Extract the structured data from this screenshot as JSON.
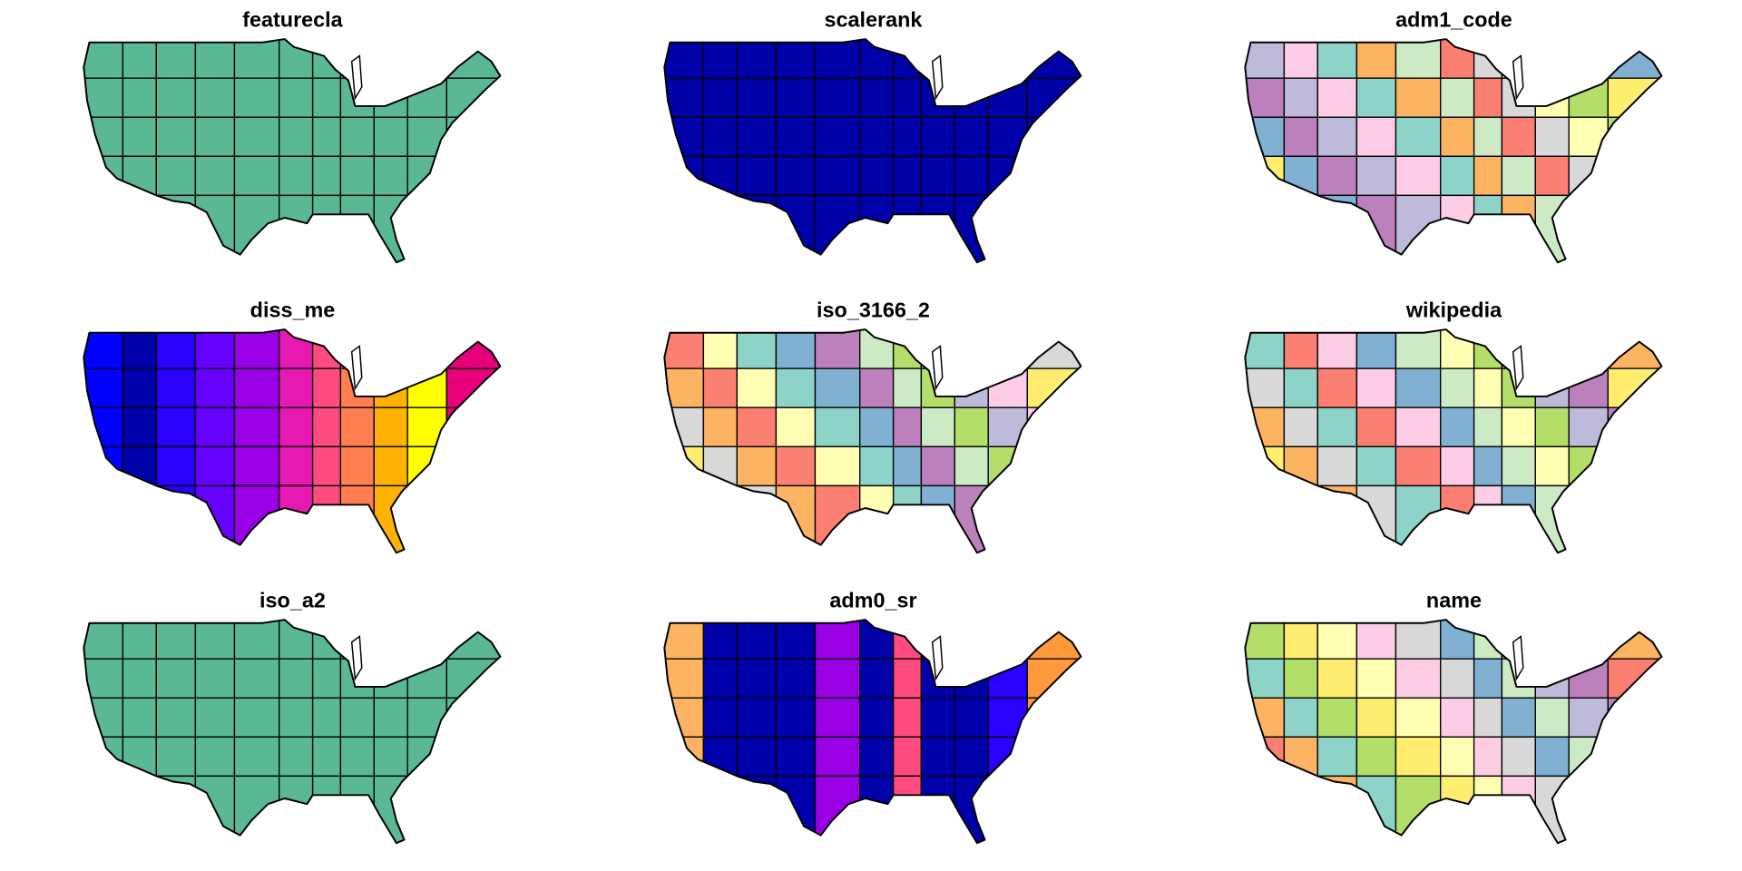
{
  "panels": [
    {
      "title": "featurecla",
      "mode": "single",
      "colors": [
        "#5AB994"
      ]
    },
    {
      "title": "scalerank",
      "mode": "single",
      "colors": [
        "#0000A8"
      ]
    },
    {
      "title": "adm1_code",
      "mode": "categorical",
      "colors": [
        "#8DD3C7",
        "#FFFFB3",
        "#BEBADA",
        "#FB8072",
        "#80B1D3",
        "#FDB462",
        "#B3DE69",
        "#FCCDE5",
        "#D9D9D9",
        "#BC80BD",
        "#CCEBC5",
        "#FFED6F"
      ]
    },
    {
      "title": "diss_me",
      "mode": "ramp",
      "colors": [
        "#0000FF",
        "#0000AA",
        "#2A00FF",
        "#6600FF",
        "#9900E6",
        "#E619B3",
        "#FF4C80",
        "#FF7F50",
        "#FFB300",
        "#FFFF00",
        "#E6007A"
      ]
    },
    {
      "title": "iso_3166_2",
      "mode": "categorical",
      "colors": [
        "#BC80BD",
        "#FFED6F",
        "#8DD3C7",
        "#BEBADA",
        "#FB8072",
        "#CCEBC5",
        "#D9D9D9",
        "#80B1D3",
        "#FCCDE5",
        "#FFFFB3",
        "#B3DE69",
        "#FDB462"
      ]
    },
    {
      "title": "wikipedia",
      "mode": "categorical",
      "colors": [
        "#D9D9D9",
        "#CCEBC5",
        "#FFED6F",
        "#FCCDE5",
        "#BEBADA",
        "#8DD3C7",
        "#FFFFB3",
        "#FDB462",
        "#80B1D3",
        "#BC80BD",
        "#FB8072",
        "#B3DE69"
      ]
    },
    {
      "title": "iso_a2",
      "mode": "single",
      "colors": [
        "#5AB994"
      ]
    },
    {
      "title": "adm0_sr",
      "mode": "ramp",
      "colors": [
        "#FDB462",
        "#0000AA",
        "#0000AA",
        "#0000AA",
        "#9900E6",
        "#0000AA",
        "#FF4C80",
        "#0000AA",
        "#0000AA",
        "#2A00FF",
        "#FF9A3C"
      ]
    },
    {
      "title": "name",
      "mode": "categorical",
      "colors": [
        "#BC80BD",
        "#FFED6F",
        "#CCEBC5",
        "#8DD3C7",
        "#D9D9D9",
        "#FB8072",
        "#FFFFB3",
        "#BEBADA",
        "#B3DE69",
        "#80B1D3",
        "#FDB462",
        "#FCCDE5"
      ]
    }
  ]
}
